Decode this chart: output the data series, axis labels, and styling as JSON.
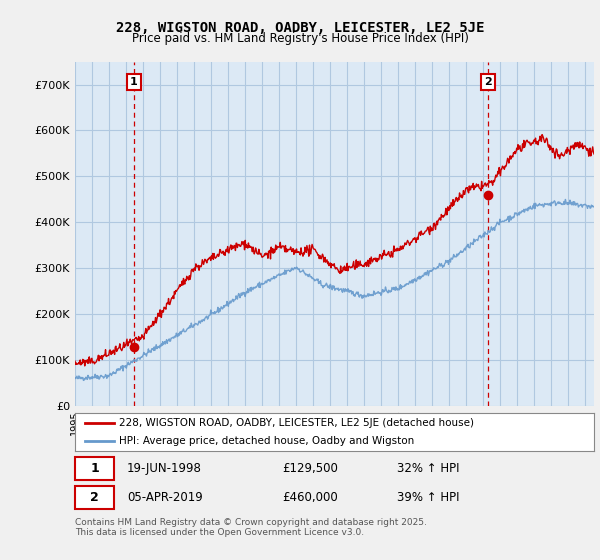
{
  "title": "228, WIGSTON ROAD, OADBY, LEICESTER, LE2 5JE",
  "subtitle": "Price paid vs. HM Land Registry's House Price Index (HPI)",
  "legend_line1": "228, WIGSTON ROAD, OADBY, LEICESTER, LE2 5JE (detached house)",
  "legend_line2": "HPI: Average price, detached house, Oadby and Wigston",
  "footer": "Contains HM Land Registry data © Crown copyright and database right 2025.\nThis data is licensed under the Open Government Licence v3.0.",
  "transaction1": {
    "label": "1",
    "date": "19-JUN-1998",
    "price": "£129,500",
    "hpi": "32% ↑ HPI"
  },
  "transaction2": {
    "label": "2",
    "date": "05-APR-2019",
    "price": "£460,000",
    "hpi": "39% ↑ HPI"
  },
  "ylim": [
    0,
    750000
  ],
  "yticks": [
    0,
    100000,
    200000,
    300000,
    400000,
    500000,
    600000,
    700000
  ],
  "red_color": "#cc0000",
  "blue_color": "#6699cc",
  "plot_bg": "#dce9f5",
  "bg_color": "#f0f0f0",
  "grid_color": "#b0c8e0",
  "vline_color": "#cc0000",
  "marker1_x": 1998.47,
  "marker1_y": 129500,
  "marker2_x": 2019.26,
  "marker2_y": 460000,
  "xmin": 1995.0,
  "xmax": 2025.5
}
